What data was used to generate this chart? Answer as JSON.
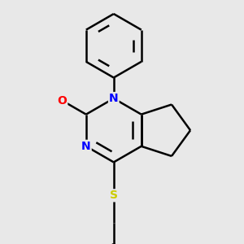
{
  "background_color": "#e8e8e8",
  "atom_colors": {
    "C": "#000000",
    "N": "#0000ff",
    "O": "#ff0000",
    "S": "#cccc00"
  },
  "bond_color": "#000000",
  "bond_width": 1.8,
  "font_size_atoms": 10
}
